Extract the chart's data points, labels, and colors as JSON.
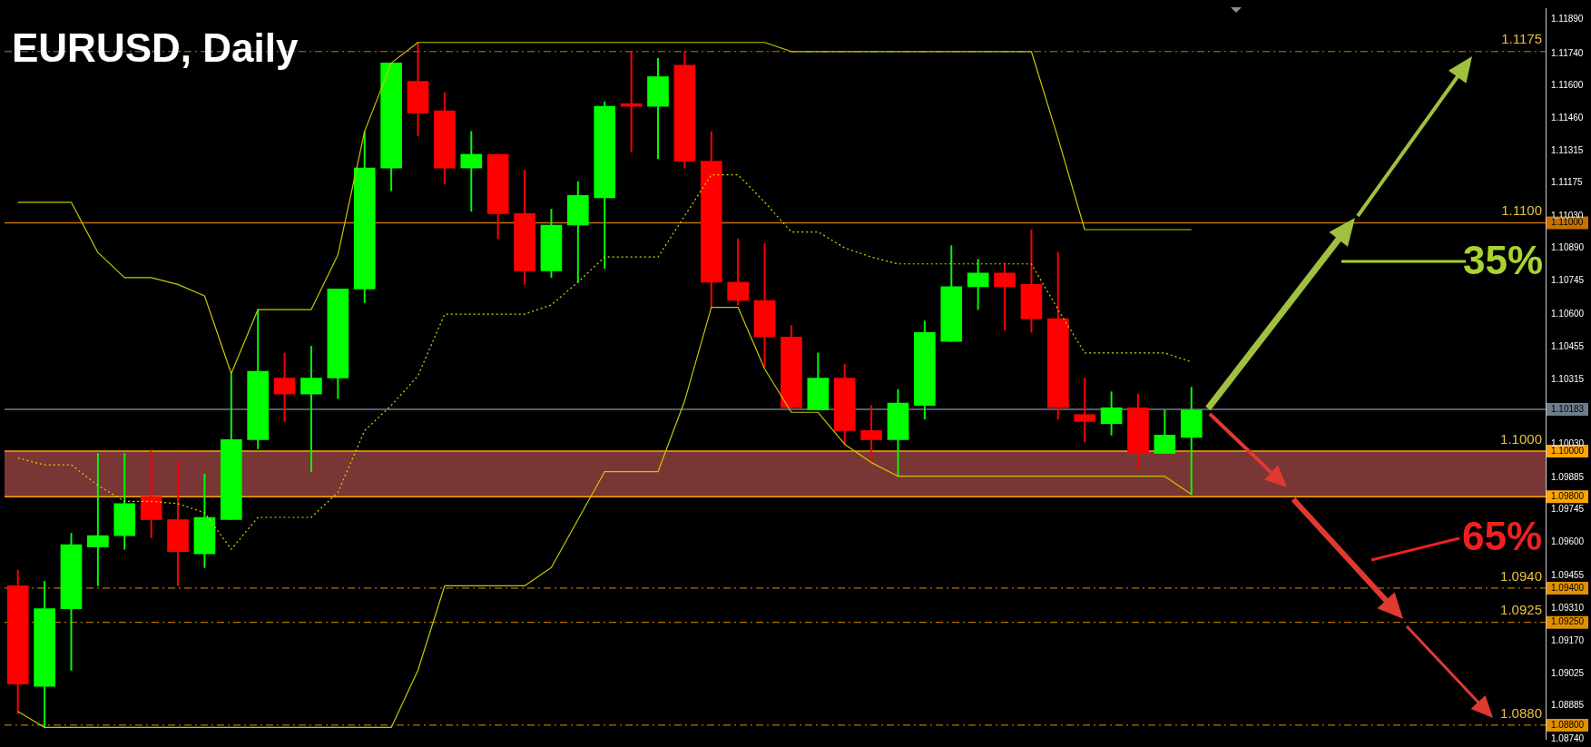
{
  "chart_data": {
    "type": "candlestick",
    "title": "EURUSD, Daily",
    "categories": [
      null,
      null,
      null,
      null,
      null,
      null,
      null,
      null,
      null,
      null,
      null,
      null,
      null,
      null,
      null,
      null,
      null,
      null,
      null,
      null,
      null,
      null,
      null,
      null,
      null,
      null,
      null,
      null,
      null,
      null,
      null,
      null,
      null,
      null,
      null,
      null,
      null,
      null,
      null,
      null,
      null,
      null,
      null,
      null,
      null
    ],
    "ohlc": [
      [
        1.0941,
        1.0948,
        1.0885,
        1.0898
      ],
      [
        1.0897,
        1.0943,
        1.0879,
        1.0931
      ],
      [
        1.0931,
        1.0964,
        1.0904,
        1.0959
      ],
      [
        1.0958,
        1.0999,
        1.0941,
        1.0963
      ],
      [
        1.0963,
        1.0999,
        1.0957,
        1.0977
      ],
      [
        1.098,
        1.1,
        1.0962,
        1.097
      ],
      [
        1.097,
        1.0996,
        1.0941,
        1.0956
      ],
      [
        1.0955,
        1.099,
        1.0949,
        1.0971
      ],
      [
        1.097,
        1.1034,
        1.097,
        1.1005
      ],
      [
        1.1005,
        1.1062,
        1.1001,
        1.1035
      ],
      [
        1.1032,
        1.1043,
        1.1013,
        1.1025
      ],
      [
        1.1025,
        1.1046,
        1.0991,
        1.1032
      ],
      [
        1.1032,
        1.1071,
        1.1023,
        1.1071
      ],
      [
        1.1071,
        1.114,
        1.1065,
        1.1124
      ],
      [
        1.1124,
        1.117,
        1.1114,
        1.117
      ],
      [
        1.1162,
        1.1179,
        1.1138,
        1.1148
      ],
      [
        1.1149,
        1.1157,
        1.1117,
        1.1124
      ],
      [
        1.1124,
        1.114,
        1.1105,
        1.113
      ],
      [
        1.113,
        1.113,
        1.1093,
        1.1104
      ],
      [
        1.1104,
        1.1123,
        1.1073,
        1.1079
      ],
      [
        1.1079,
        1.1106,
        1.1076,
        1.1099
      ],
      [
        1.1099,
        1.1118,
        1.1074,
        1.1112
      ],
      [
        1.1111,
        1.1153,
        1.108,
        1.1151
      ],
      [
        1.1152,
        1.1175,
        1.1131,
        1.1151
      ],
      [
        1.1151,
        1.1172,
        1.1128,
        1.1164
      ],
      [
        1.1169,
        1.1175,
        1.1124,
        1.1127
      ],
      [
        1.1127,
        1.114,
        1.1063,
        1.1074
      ],
      [
        1.1074,
        1.1093,
        1.1064,
        1.1066
      ],
      [
        1.1066,
        1.1091,
        1.1037,
        1.105
      ],
      [
        1.105,
        1.1055,
        1.1019,
        1.1019
      ],
      [
        1.1018,
        1.1043,
        1.1018,
        1.1032
      ],
      [
        1.1032,
        1.1038,
        1.1003,
        1.1009
      ],
      [
        1.1009,
        1.102,
        1.0996,
        1.1005
      ],
      [
        1.1005,
        1.1027,
        1.0989,
        1.1021
      ],
      [
        1.102,
        1.1057,
        1.1014,
        1.1052
      ],
      [
        1.1048,
        1.109,
        1.1048,
        1.1072
      ],
      [
        1.1072,
        1.1084,
        1.1062,
        1.1078
      ],
      [
        1.1078,
        1.1082,
        1.1053,
        1.1072
      ],
      [
        1.1073,
        1.1097,
        1.1052,
        1.1058
      ],
      [
        1.1058,
        1.1087,
        1.1014,
        1.1019
      ],
      [
        1.1016,
        1.1032,
        1.1004,
        1.1013
      ],
      [
        1.1012,
        1.1026,
        1.1007,
        1.1019
      ],
      [
        1.1019,
        1.1025,
        1.0992,
        1.0999
      ],
      [
        1.0999,
        1.1018,
        1.0999,
        1.1007
      ],
      [
        1.1006,
        1.1028,
        1.0981,
        1.1018
      ]
    ],
    "colors": [
      "#ff0000",
      "#00ff00",
      "#00ff00",
      "#00ff00",
      "#00ff00",
      "#ff0000",
      "#ff0000",
      "#00ff00",
      "#00ff00",
      "#00ff00",
      "#ff0000",
      "#00ff00",
      "#00ff00",
      "#00ff00",
      "#00ff00",
      "#ff0000",
      "#ff0000",
      "#00ff00",
      "#ff0000",
      "#ff0000",
      "#00ff00",
      "#00ff00",
      "#00ff00",
      "#ff0000",
      "#00ff00",
      "#ff0000",
      "#ff0000",
      "#ff0000",
      "#ff0000",
      "#ff0000",
      "#00ff00",
      "#ff0000",
      "#ff0000",
      "#00ff00",
      "#00ff00",
      "#00ff00",
      "#00ff00",
      "#ff0000",
      "#ff0000",
      "#ff0000",
      "#ff0000",
      "#00ff00",
      "#ff0000",
      "#00ff00",
      "#00ff00"
    ],
    "series": [
      {
        "type": "line",
        "color": "#c8c800",
        "line_style": "solid",
        "values": [
          1.1109,
          1.1109,
          1.1109,
          1.1087,
          1.1076,
          1.1076,
          1.1073,
          1.1068,
          1.1034,
          1.1062,
          1.1062,
          1.1062,
          1.1086,
          1.114,
          1.117,
          1.1179,
          1.1179,
          1.1179,
          1.1179,
          1.1179,
          1.1179,
          1.1179,
          1.1179,
          1.1179,
          1.1179,
          1.1179,
          1.1179,
          1.1179,
          1.1179,
          1.1175,
          1.1175,
          1.1175,
          1.1175,
          1.1175,
          1.1175,
          1.1175,
          1.1175,
          1.1175,
          1.1175,
          1.1137,
          1.1097,
          1.1097,
          1.1097,
          1.1097,
          1.1097
        ]
      },
      {
        "type": "line",
        "color": "#d8d800",
        "line_style": "dotted",
        "values": [
          1.0997,
          1.0994,
          1.0994,
          1.0985,
          1.0978,
          1.0978,
          1.0977,
          1.0973,
          1.0957,
          1.0971,
          1.0971,
          1.0971,
          1.0982,
          1.1009,
          1.102,
          1.1033,
          1.106,
          1.106,
          1.106,
          1.106,
          1.1064,
          1.1074,
          1.1085,
          1.1085,
          1.1085,
          1.1103,
          1.1121,
          1.1121,
          1.1109,
          1.1096,
          1.1096,
          1.1089,
          1.1085,
          1.1082,
          1.1082,
          1.1082,
          1.1082,
          1.1082,
          1.1082,
          1.1062,
          1.1043,
          1.1043,
          1.1043,
          1.1043,
          1.1039
        ]
      },
      {
        "type": "line",
        "color": "#c8c800",
        "line_style": "solid",
        "values": [
          1.0886,
          1.0879,
          1.0879,
          1.0879,
          1.0879,
          1.0879,
          1.0879,
          1.0879,
          1.0879,
          1.0879,
          1.0879,
          1.0879,
          1.0879,
          1.0879,
          1.0879,
          1.0904,
          1.0941,
          1.0941,
          1.0941,
          1.0941,
          1.0949,
          1.097,
          1.0991,
          1.0991,
          1.0991,
          1.1022,
          1.1063,
          1.1063,
          1.1036,
          1.1017,
          1.1017,
          1.1003,
          1.0995,
          1.0989,
          1.0989,
          1.0989,
          1.0989,
          1.0989,
          1.0989,
          1.0989,
          1.0989,
          1.0989,
          1.0989,
          1.0989,
          1.0981
        ]
      }
    ],
    "ylim": [
      1.0874,
      1.1194
    ],
    "yticks": [
      {
        "value": 1.1189,
        "label": "1.11890"
      },
      {
        "value": 1.1174,
        "label": "1.11740"
      },
      {
        "value": 1.116,
        "label": "1.11600"
      },
      {
        "value": 1.1146,
        "label": "1.11460"
      },
      {
        "value": 1.11315,
        "label": "1.11315"
      },
      {
        "value": 1.11175,
        "label": "1.11175"
      },
      {
        "value": 1.1103,
        "label": "1.11030"
      },
      {
        "value": 1.11,
        "label": "1.11000"
      },
      {
        "value": 1.1089,
        "label": "1.10890"
      },
      {
        "value": 1.10745,
        "label": "1.10745"
      },
      {
        "value": 1.106,
        "label": "1.10600"
      },
      {
        "value": 1.10455,
        "label": "1.10455"
      },
      {
        "value": 1.10315,
        "label": "1.10315"
      },
      {
        "value": 1.10183,
        "label": "1.10183"
      },
      {
        "value": 1.1003,
        "label": "1.10030"
      },
      {
        "value": 1.1,
        "label": "1.10000"
      },
      {
        "value": 1.09885,
        "label": "1.09885"
      },
      {
        "value": 1.098,
        "label": "1.09800"
      },
      {
        "value": 1.09745,
        "label": "1.09745"
      },
      {
        "value": 1.096,
        "label": "1.09600"
      },
      {
        "value": 1.09455,
        "label": "1.09455"
      },
      {
        "value": 1.094,
        "label": "1.09400"
      },
      {
        "value": 1.0931,
        "label": "1.09310"
      },
      {
        "value": 1.0925,
        "label": "1.09250"
      },
      {
        "value": 1.0917,
        "label": "1.09170"
      },
      {
        "value": 1.09025,
        "label": "1.09025"
      },
      {
        "value": 1.08885,
        "label": "1.08885"
      },
      {
        "value": 1.088,
        "label": "1.08800"
      },
      {
        "value": 1.0874,
        "label": "1.08740"
      }
    ],
    "ref_lines": [
      {
        "axis": "y",
        "value": 1.1175,
        "label": "1.1175",
        "color": "#c87800",
        "line_style": "dashed"
      },
      {
        "axis": "y",
        "value": 1.11,
        "label": "1.1100",
        "color": "#c87000",
        "line_style": "solid"
      },
      {
        "axis": "y",
        "value": 1.10183,
        "label": null,
        "color": "#6d7d8c",
        "line_style": "solid"
      },
      {
        "axis": "y",
        "value": 1.1,
        "label": "1.1000",
        "color": "#ffa500",
        "line_style": "solid"
      },
      {
        "axis": "y",
        "value": 1.098,
        "label": null,
        "color": "#ffa500",
        "line_style": "solid"
      },
      {
        "axis": "y",
        "value": 1.094,
        "label": "1.0940",
        "color": "#e09000",
        "line_style": "dashed"
      },
      {
        "axis": "y",
        "value": 1.0925,
        "label": "1.0925",
        "color": "#e09000",
        "line_style": "dashed"
      },
      {
        "axis": "y",
        "value": 1.088,
        "label": "1.0880",
        "color": "#e09000",
        "line_style": "dashed"
      }
    ],
    "bands": [
      {
        "axis": "y",
        "from": 1.098,
        "to": 1.1,
        "color": "#7a3535"
      }
    ],
    "annotations": [
      "35%",
      "65%"
    ],
    "grid": false,
    "legend": false,
    "marker": "none",
    "tick_labels": "y"
  }
}
